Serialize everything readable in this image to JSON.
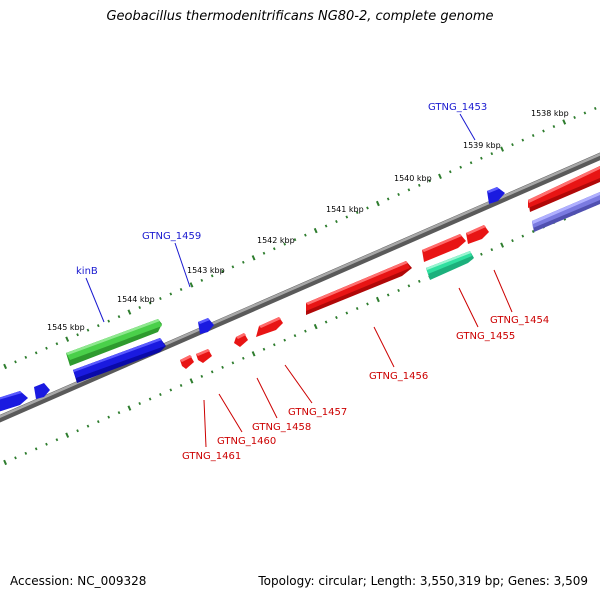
{
  "title": "Geobacillus thermodenitrificans NG80-2, complete genome",
  "footer": {
    "accession": "Accession: NC_009328",
    "topology": "Topology: circular; Length: 3,550,319 bp; Genes: 3,509"
  },
  "colors": {
    "backbone": "#808080",
    "tick": "#2e7d2e",
    "forward_cds": "#1212e0",
    "reverse_cds": "#e81414",
    "gene_label_blue": "#1a1ad0",
    "gene_label_red": "#cc0000",
    "green_gene": "#3cc43c",
    "teal_gene": "#30e0a0",
    "slate_gene": "#7070d8"
  },
  "kbp_labels": [
    "1538 kbp",
    "1539 kbp",
    "1540 kbp",
    "1541 kbp",
    "1542 kbp",
    "1543 kbp",
    "1544 kbp",
    "1545 kbp"
  ],
  "gene_labels": {
    "top": [
      "GTNG_1453",
      "GTNG_1459",
      "kinB"
    ],
    "bottom": [
      "GTNG_1454",
      "GTNG_1455",
      "GTNG_1456",
      "GTNG_1457",
      "GTNG_1458",
      "GTNG_1460",
      "GTNG_1461"
    ]
  }
}
